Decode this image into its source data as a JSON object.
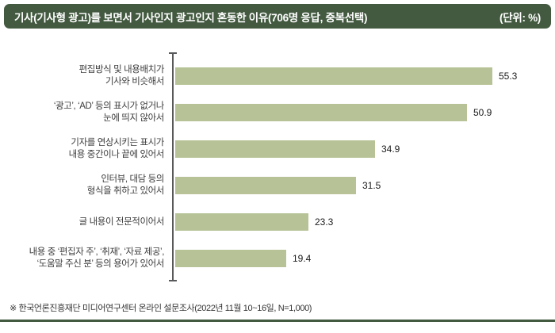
{
  "header": {
    "title": "기사(기사형 광고)를 보면서 기사인지 광고인지 혼동한 이유(706명 응답, 중복선택)",
    "unit_label": "(단위: %)"
  },
  "chart_data": {
    "type": "bar",
    "orientation": "horizontal",
    "title": "기사(기사형 광고)를 보면서 기사인지 광고인지 혼동한 이유(706명 응답, 중복선택)",
    "unit": "%",
    "respondents": "706명 응답, 중복선택",
    "categories": [
      [
        "편집방식 및 내용배치가",
        "기사와 비슷해서"
      ],
      [
        "‘광고’, ‘AD’ 등의 표시가 없거나",
        "눈에 띄지 않아서"
      ],
      [
        "기자를 연상시키는 표시가",
        "내용 중간이나 끝에 있어서"
      ],
      [
        "인터뷰, 대담 등의",
        "형식을 취하고 있어서"
      ],
      [
        "글 내용이 전문적이어서"
      ],
      [
        "내용 중 ‘편집자 주’, ‘취재’, ‘자료 제공’,",
        "‘도움말 주신 분’ 등의 용어가 있어서"
      ]
    ],
    "values": [
      55.3,
      50.9,
      34.9,
      31.5,
      23.3,
      19.4
    ],
    "xlim": [
      0,
      60
    ],
    "grid": false,
    "legend": "none",
    "bar_color": "#b7c397",
    "axis_color": "#58595b"
  },
  "footer": {
    "source_note": "※ 한국언론진흥재단 미디어연구센터 온라인 설문조사(2022년 11월 10~16일, N=1,000)"
  },
  "colors": {
    "header_bg": "#435a40",
    "bar_fill": "#b7c397",
    "bottom_rule": "#435a40"
  }
}
